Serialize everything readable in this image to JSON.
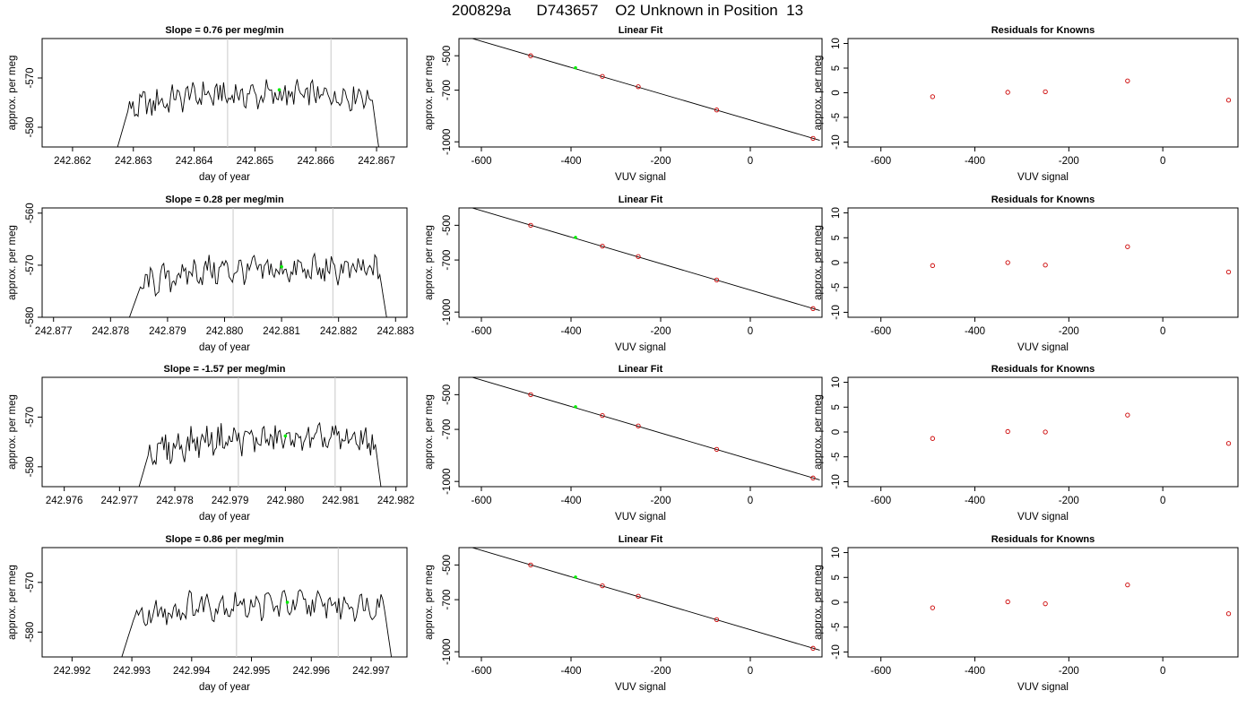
{
  "page_title": "200829a      D743657    O2 Unknown in Position  13",
  "colors": {
    "trace": "#000000",
    "marker": "#00ee00",
    "known_point": "#cc0000",
    "window_line": "#c8c8c8",
    "axis": "#000000"
  },
  "chart_data": [
    {
      "type": "line",
      "title": "Slope =  0.76  per meg/min",
      "xlabel": "day of year",
      "ylabel": "approx. per meg",
      "xlim": [
        242.8615,
        242.8675
      ],
      "ylim": [
        -584,
        -562
      ],
      "x_ticks": [
        "242.862",
        "242.863",
        "242.864",
        "242.865",
        "242.866",
        "242.867"
      ],
      "y_ticks": [
        "-580",
        "-570"
      ],
      "window_lines": [
        242.86455,
        242.86625
      ],
      "marker": {
        "x": 242.8654,
        "y": -572.4
      },
      "trace": {
        "x_start": 242.8626,
        "x_end": 242.8671,
        "level": -573.5,
        "drop_end": -590
      },
      "grid": false
    },
    {
      "type": "scatter",
      "title": "Linear Fit",
      "xlabel": "VUV signal",
      "ylabel": "approx. per meg",
      "xlim": [
        -650,
        160
      ],
      "ylim": [
        -1030,
        -400
      ],
      "x_ticks": [
        "-600",
        "-400",
        "-200",
        "0"
      ],
      "y_ticks": [
        "-500",
        "-700",
        "-1000"
      ],
      "known_x": [
        -490,
        -330,
        -250,
        -75,
        140
      ],
      "known_y": [
        -500,
        -620,
        -680,
        -815,
        -980
      ],
      "unknown": {
        "x": -390,
        "y": -570
      },
      "fit_line": {
        "slope": 0.7625,
        "intercept": -873
      },
      "grid": false
    },
    {
      "type": "scatter",
      "title": "Residuals for Knowns",
      "xlabel": "VUV signal",
      "ylabel": "approx. per meg",
      "xlim": [
        -670,
        160
      ],
      "ylim": [
        -11,
        11
      ],
      "x_ticks": [
        "-600",
        "-400",
        "-200",
        "0"
      ],
      "y_ticks": [
        "10",
        "5",
        "0",
        "-5",
        "-10"
      ],
      "x": [
        -490,
        -330,
        -250,
        -75,
        140
      ],
      "y": [
        -0.8,
        0.1,
        0.2,
        2.4,
        -1.5
      ],
      "grid": false
    },
    {
      "type": "line",
      "title": "Slope =  0.28  per meg/min",
      "xlabel": "day of year",
      "ylabel": "approx. per meg",
      "xlim": [
        242.8768,
        242.8832
      ],
      "ylim": [
        -580,
        -559
      ],
      "x_ticks": [
        "242.877",
        "242.878",
        "242.879",
        "242.880",
        "242.881",
        "242.882",
        "242.883"
      ],
      "y_ticks": [
        "-560",
        "-570",
        "-580"
      ],
      "window_lines": [
        242.88015,
        242.8819
      ],
      "marker": {
        "x": 242.881,
        "y": -570.3
      },
      "trace": {
        "x_start": 242.8782,
        "x_end": 242.8829,
        "level": -571.0,
        "drop_end": -584
      },
      "grid": false
    },
    {
      "type": "scatter",
      "title": "Linear Fit",
      "xlabel": "VUV signal",
      "ylabel": "approx. per meg",
      "xlim": [
        -650,
        160
      ],
      "ylim": [
        -1030,
        -400
      ],
      "x_ticks": [
        "-600",
        "-400",
        "-200",
        "0"
      ],
      "y_ticks": [
        "-500",
        "-700",
        "-1000"
      ],
      "known_x": [
        -490,
        -330,
        -250,
        -75,
        140
      ],
      "known_y": [
        -500,
        -620,
        -680,
        -815,
        -980
      ],
      "unknown": {
        "x": -390,
        "y": -570
      },
      "fit_line": {
        "slope": 0.7625,
        "intercept": -873
      },
      "grid": false
    },
    {
      "type": "scatter",
      "title": "Residuals for Knowns",
      "xlabel": "VUV signal",
      "ylabel": "approx. per meg",
      "xlim": [
        -670,
        160
      ],
      "ylim": [
        -11,
        11
      ],
      "x_ticks": [
        "-600",
        "-400",
        "-200",
        "0"
      ],
      "y_ticks": [
        "10",
        "5",
        "0",
        "-5",
        "-10"
      ],
      "x": [
        -490,
        -330,
        -250,
        -75,
        140
      ],
      "y": [
        -0.6,
        0.0,
        -0.5,
        3.2,
        -1.9
      ],
      "grid": false
    },
    {
      "type": "line",
      "title": "Slope =  -1.57  per meg/min",
      "xlabel": "day of year",
      "ylabel": "approx. per meg",
      "xlim": [
        242.9756,
        242.9822
      ],
      "ylim": [
        -584,
        -562
      ],
      "x_ticks": [
        "242.976",
        "242.977",
        "242.978",
        "242.979",
        "242.980",
        "242.981",
        "242.982"
      ],
      "y_ticks": [
        "-570",
        "-580"
      ],
      "window_lines": [
        242.97915,
        242.9809
      ],
      "marker": {
        "x": 242.98,
        "y": -573.8
      },
      "trace": {
        "x_start": 242.9772,
        "x_end": 242.9818,
        "level": -574.5,
        "drop_end": -590
      },
      "grid": false
    },
    {
      "type": "scatter",
      "title": "Linear Fit",
      "xlabel": "VUV signal",
      "ylabel": "approx. per meg",
      "xlim": [
        -650,
        160
      ],
      "ylim": [
        -1030,
        -400
      ],
      "x_ticks": [
        "-600",
        "-400",
        "-200",
        "0"
      ],
      "y_ticks": [
        "-500",
        "-700",
        "-1000"
      ],
      "known_x": [
        -490,
        -330,
        -250,
        -75,
        140
      ],
      "known_y": [
        -500,
        -620,
        -680,
        -815,
        -980
      ],
      "unknown": {
        "x": -390,
        "y": -570
      },
      "fit_line": {
        "slope": 0.7625,
        "intercept": -873
      },
      "grid": false
    },
    {
      "type": "scatter",
      "title": "Residuals for Knowns",
      "xlabel": "VUV signal",
      "ylabel": "approx. per meg",
      "xlim": [
        -670,
        160
      ],
      "ylim": [
        -11,
        11
      ],
      "x_ticks": [
        "-600",
        "-400",
        "-200",
        "0"
      ],
      "y_ticks": [
        "10",
        "5",
        "0",
        "-5",
        "-10"
      ],
      "x": [
        -490,
        -330,
        -250,
        -75,
        140
      ],
      "y": [
        -1.3,
        0.1,
        0.0,
        3.4,
        -2.3
      ],
      "grid": false
    },
    {
      "type": "line",
      "title": "Slope =  0.86  per meg/min",
      "xlabel": "day of year",
      "ylabel": "approx. per meg",
      "xlim": [
        242.9915,
        242.9976
      ],
      "ylim": [
        -585,
        -563
      ],
      "x_ticks": [
        "242.992",
        "242.993",
        "242.994",
        "242.995",
        "242.996",
        "242.997"
      ],
      "y_ticks": [
        "-570",
        "-580"
      ],
      "window_lines": [
        242.99475,
        242.99645
      ],
      "marker": {
        "x": 242.9956,
        "y": -574.0
      },
      "trace": {
        "x_start": 242.9927,
        "x_end": 242.9974,
        "level": -574.5,
        "drop_end": -590
      },
      "grid": false
    },
    {
      "type": "scatter",
      "title": "Linear Fit",
      "xlabel": "VUV signal",
      "ylabel": "approx. per meg",
      "xlim": [
        -650,
        160
      ],
      "ylim": [
        -1030,
        -400
      ],
      "x_ticks": [
        "-600",
        "-400",
        "-200",
        "0"
      ],
      "y_ticks": [
        "-500",
        "-700",
        "-1000"
      ],
      "known_x": [
        -490,
        -330,
        -250,
        -75,
        140
      ],
      "known_y": [
        -500,
        -620,
        -680,
        -815,
        -980
      ],
      "unknown": {
        "x": -390,
        "y": -570
      },
      "fit_line": {
        "slope": 0.7625,
        "intercept": -873
      },
      "grid": false
    },
    {
      "type": "scatter",
      "title": "Residuals for Knowns",
      "xlabel": "VUV signal",
      "ylabel": "approx. per meg",
      "xlim": [
        -670,
        160
      ],
      "ylim": [
        -11,
        11
      ],
      "x_ticks": [
        "-600",
        "-400",
        "-200",
        "0"
      ],
      "y_ticks": [
        "10",
        "5",
        "0",
        "-5",
        "-10"
      ],
      "x": [
        -490,
        -330,
        -250,
        -75,
        140
      ],
      "y": [
        -1.1,
        0.1,
        -0.3,
        3.5,
        -2.3
      ],
      "grid": false
    }
  ]
}
